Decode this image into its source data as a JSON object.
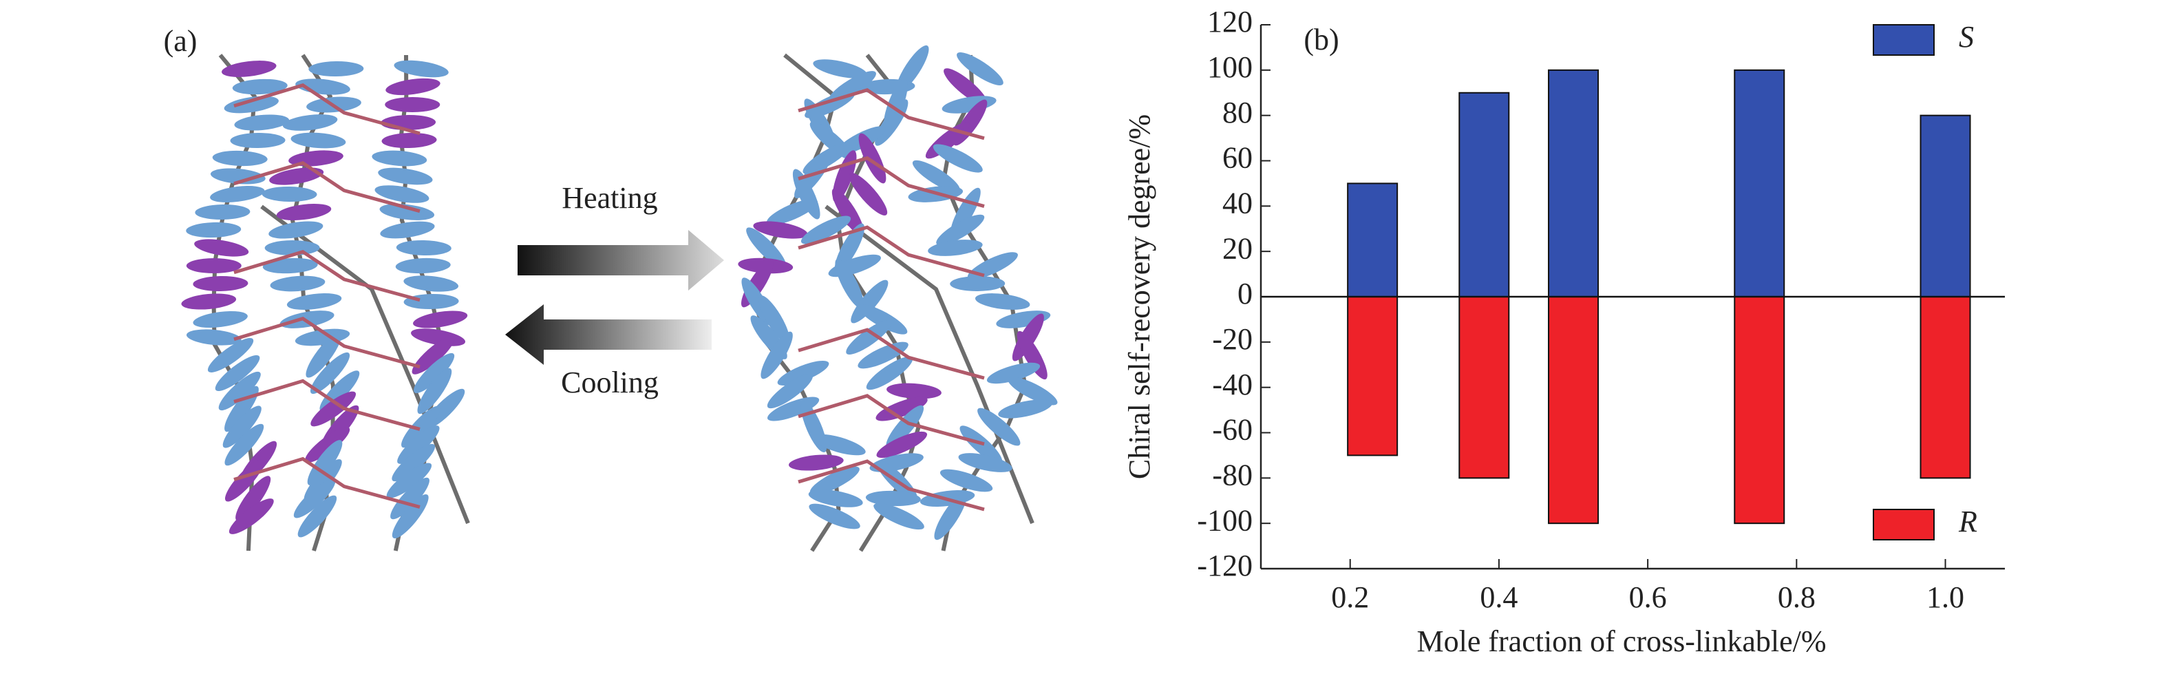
{
  "illustration": {
    "label": "(a)",
    "heating": "Heating",
    "cooling": "Cooling"
  },
  "chart_data": {
    "type": "bar",
    "panel_label": "(b)",
    "x_label": "Mole fraction of cross-linkable/%",
    "y_label": "Chiral self-recovery degree/%",
    "x": [
      0.23,
      0.38,
      0.5,
      0.75,
      1.0
    ],
    "series": [
      {
        "name": "S",
        "color": "#3350ae",
        "values": [
          50,
          90,
          100,
          100,
          80
        ]
      },
      {
        "name": "R",
        "color": "#ee2229",
        "values": [
          -70,
          -80,
          -100,
          -100,
          -80
        ]
      }
    ],
    "xlim": [
      0.08,
      1.08
    ],
    "xticks": [
      0.2,
      0.4,
      0.6,
      0.8,
      {
        "value": 1,
        "label": "1.0"
      }
    ],
    "ylim": [
      -120,
      120
    ],
    "yticks": [
      -120,
      -100,
      -80,
      -60,
      -40,
      -20,
      0,
      20,
      40,
      60,
      80,
      100,
      120
    ],
    "legend": "right"
  }
}
